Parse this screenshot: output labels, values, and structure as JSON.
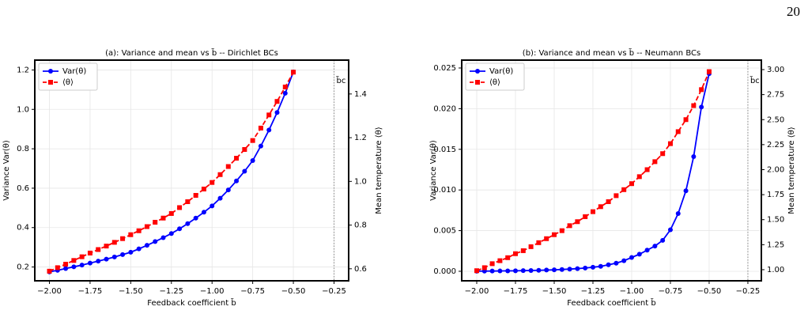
{
  "page_number": "20",
  "chart_data": [
    {
      "type": "line",
      "title": "(a): Variance and mean vs b̃ -- Dirichlet BCs",
      "x_label": "Feedback coefficient b̃",
      "y_label": "Variance Var(θ)",
      "y2_label": "Mean temperature ⟨θ⟩",
      "x": [
        -2.0,
        -1.95,
        -1.9,
        -1.85,
        -1.8,
        -1.75,
        -1.7,
        -1.65,
        -1.6,
        -1.55,
        -1.5,
        -1.45,
        -1.4,
        -1.35,
        -1.3,
        -1.25,
        -1.2,
        -1.15,
        -1.1,
        -1.05,
        -1.0,
        -0.95,
        -0.9,
        -0.85,
        -0.8,
        -0.75,
        -0.7,
        -0.65,
        -0.6,
        -0.55,
        -0.5
      ],
      "series": [
        {
          "name": "Var(θ)",
          "color": "#0000ff",
          "marker": "circle",
          "dashed": false,
          "values": [
            0.175,
            0.183,
            0.192,
            0.201,
            0.21,
            0.22,
            0.23,
            0.24,
            0.251,
            0.263,
            0.275,
            0.292,
            0.31,
            0.329,
            0.349,
            0.37,
            0.394,
            0.42,
            0.448,
            0.478,
            0.51,
            0.549,
            0.591,
            0.637,
            0.686,
            0.74,
            0.814,
            0.895,
            0.984,
            1.082,
            1.19
          ]
        },
        {
          "name": "⟨θ⟩",
          "color": "#ff0000",
          "marker": "square",
          "dashed": true,
          "axis": "y2",
          "values": [
            0.589,
            0.605,
            0.621,
            0.638,
            0.655,
            0.672,
            0.688,
            0.704,
            0.721,
            0.738,
            0.756,
            0.774,
            0.793,
            0.813,
            0.832,
            0.853,
            0.88,
            0.907,
            0.936,
            0.965,
            0.995,
            1.031,
            1.068,
            1.106,
            1.146,
            1.187,
            1.244,
            1.304,
            1.366,
            1.432,
            1.5
          ]
        }
      ],
      "xlim": [
        -2.09,
        -0.16
      ],
      "xticks": [
        {
          "value": -2.0,
          "label": "−2.00"
        },
        {
          "value": -1.75,
          "label": "−1.75"
        },
        {
          "value": -1.5,
          "label": "−1.50"
        },
        {
          "value": -1.25,
          "label": "−1.25"
        },
        {
          "value": -1.0,
          "label": "−1.00"
        },
        {
          "value": -0.75,
          "label": "−0.75"
        },
        {
          "value": -0.5,
          "label": "−0.50"
        },
        {
          "value": -0.25,
          "label": "−0.25"
        }
      ],
      "ylim": [
        0.13,
        1.25
      ],
      "yticks": [
        0.2,
        0.4,
        0.6,
        0.8,
        {
          "value": 1.0,
          "label": "1.0"
        },
        1.2
      ],
      "y2lim": [
        0.545,
        1.555
      ],
      "y2ticks": [
        0.6,
        0.8,
        {
          "value": 1.0,
          "label": "1.0"
        },
        1.2,
        1.4
      ],
      "critical_line": {
        "x": -0.25,
        "label": "b̃c"
      },
      "grid": true,
      "legend": "upper-left"
    },
    {
      "type": "line",
      "title": "(b): Variance and mean vs b̃ -- Neumann BCs",
      "x_label": "Feedback coefficient b̃",
      "y_label": "Variance Var(θ)",
      "y2_label": "Mean temperature ⟨θ⟩",
      "x": [
        -2.0,
        -1.95,
        -1.9,
        -1.85,
        -1.8,
        -1.75,
        -1.7,
        -1.65,
        -1.6,
        -1.55,
        -1.5,
        -1.45,
        -1.4,
        -1.35,
        -1.3,
        -1.25,
        -1.2,
        -1.15,
        -1.1,
        -1.05,
        -1.0,
        -0.95,
        -0.9,
        -0.85,
        -0.8,
        -0.75,
        -0.7,
        -0.65,
        -0.6,
        -0.55,
        -0.5
      ],
      "series": [
        {
          "name": "Var(θ)",
          "color": "#0000ff",
          "marker": "circle",
          "dashed": false,
          "values": [
            1e-05,
            2e-05,
            3e-05,
            4e-05,
            5e-05,
            6e-05,
            8e-05,
            0.0001,
            0.00012,
            0.00015,
            0.00018,
            0.00022,
            0.00027,
            0.00033,
            0.0004,
            0.0005,
            0.0006,
            0.0008,
            0.001,
            0.0013,
            0.0017,
            0.0021,
            0.0026,
            0.0031,
            0.0038,
            0.0051,
            0.0071,
            0.0099,
            0.0141,
            0.0202,
            0.0243
          ]
        },
        {
          "name": "⟨θ⟩",
          "color": "#ff0000",
          "marker": "square",
          "dashed": true,
          "axis": "y2",
          "values": [
            0.99,
            1.02,
            1.06,
            1.09,
            1.12,
            1.16,
            1.19,
            1.23,
            1.27,
            1.31,
            1.35,
            1.39,
            1.44,
            1.48,
            1.53,
            1.58,
            1.63,
            1.68,
            1.74,
            1.8,
            1.86,
            1.93,
            2.0,
            2.08,
            2.16,
            2.26,
            2.38,
            2.5,
            2.64,
            2.8,
            2.98
          ]
        }
      ],
      "xlim": [
        -2.097,
        -0.163
      ],
      "xticks": [
        {
          "value": -2.0,
          "label": "−2.00"
        },
        {
          "value": -1.75,
          "label": "−1.75"
        },
        {
          "value": -1.5,
          "label": "−1.50"
        },
        {
          "value": -1.25,
          "label": "−1.25"
        },
        {
          "value": -1.0,
          "label": "−1.00"
        },
        {
          "value": -0.75,
          "label": "−0.75"
        },
        {
          "value": -0.5,
          "label": "−0.50"
        },
        {
          "value": -0.25,
          "label": "−0.25"
        }
      ],
      "ylim": [
        -0.00117,
        0.02597
      ],
      "yticks": [
        {
          "value": 0,
          "label": "0.000"
        },
        {
          "value": 0.005,
          "label": "0.005"
        },
        {
          "value": 0.01,
          "label": "0.010"
        },
        {
          "value": 0.015,
          "label": "0.015"
        },
        {
          "value": 0.02,
          "label": "0.020"
        },
        {
          "value": 0.025,
          "label": "0.025"
        }
      ],
      "y2lim": [
        0.889,
        3.095
      ],
      "y2ticks": [
        {
          "value": 1,
          "label": "1.00"
        },
        {
          "value": 1.25,
          "label": "1.25"
        },
        {
          "value": 1.5,
          "label": "1.50"
        },
        {
          "value": 1.75,
          "label": "1.75"
        },
        {
          "value": 2,
          "label": "2.00"
        },
        {
          "value": 2.25,
          "label": "2.25"
        },
        {
          "value": 2.5,
          "label": "2.50"
        },
        {
          "value": 2.75,
          "label": "2.75"
        },
        {
          "value": 3,
          "label": "3.00"
        }
      ],
      "critical_line": {
        "x": -0.25,
        "label": "b̃c"
      },
      "grid": true,
      "legend": "upper-left"
    }
  ]
}
